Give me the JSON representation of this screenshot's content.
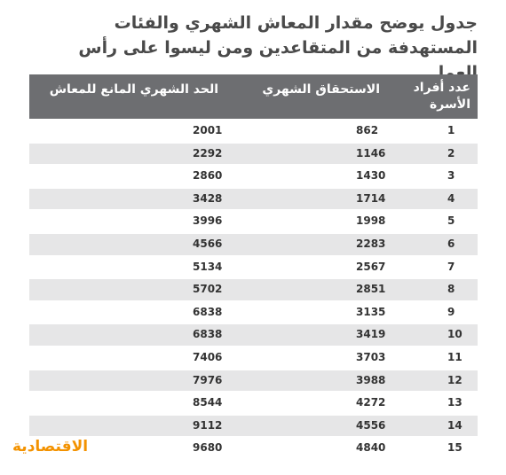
{
  "title": "جدول يوضح مقدار المعاش الشهري والفئات المستهدفة من المتقاعدين ومن ليسوا على رأس العمل",
  "columns": {
    "family_members": "عدد أفراد الأسرة",
    "monthly_entitlement": "الاستحقاق الشهري",
    "monthly_ceiling": "الحد الشهري المانع للمعاش"
  },
  "rows": [
    {
      "n": "1",
      "a": "862",
      "b": "2001"
    },
    {
      "n": "2",
      "a": "1146",
      "b": "2292"
    },
    {
      "n": "3",
      "a": "1430",
      "b": "2860"
    },
    {
      "n": "4",
      "a": "1714",
      "b": "3428"
    },
    {
      "n": "5",
      "a": "1998",
      "b": "3996"
    },
    {
      "n": "6",
      "a": "2283",
      "b": "4566"
    },
    {
      "n": "7",
      "a": "2567",
      "b": "5134"
    },
    {
      "n": "8",
      "a": "2851",
      "b": "5702"
    },
    {
      "n": "9",
      "a": "3135",
      "b": "6838"
    },
    {
      "n": "10",
      "a": "3419",
      "b": "6838"
    },
    {
      "n": "11",
      "a": "3703",
      "b": "7406"
    },
    {
      "n": "12",
      "a": "3988",
      "b": "7976"
    },
    {
      "n": "13",
      "a": "4272",
      "b": "8544"
    },
    {
      "n": "14",
      "a": "4556",
      "b": "9112"
    },
    {
      "n": "15",
      "a": "4840",
      "b": "9680"
    }
  ],
  "logo_text": "الاقتصادية",
  "colors": {
    "header_bg": "#6d6e71",
    "stripe": "#e6e6e7",
    "logo": "#f39200",
    "title": "#4a4a4a"
  }
}
